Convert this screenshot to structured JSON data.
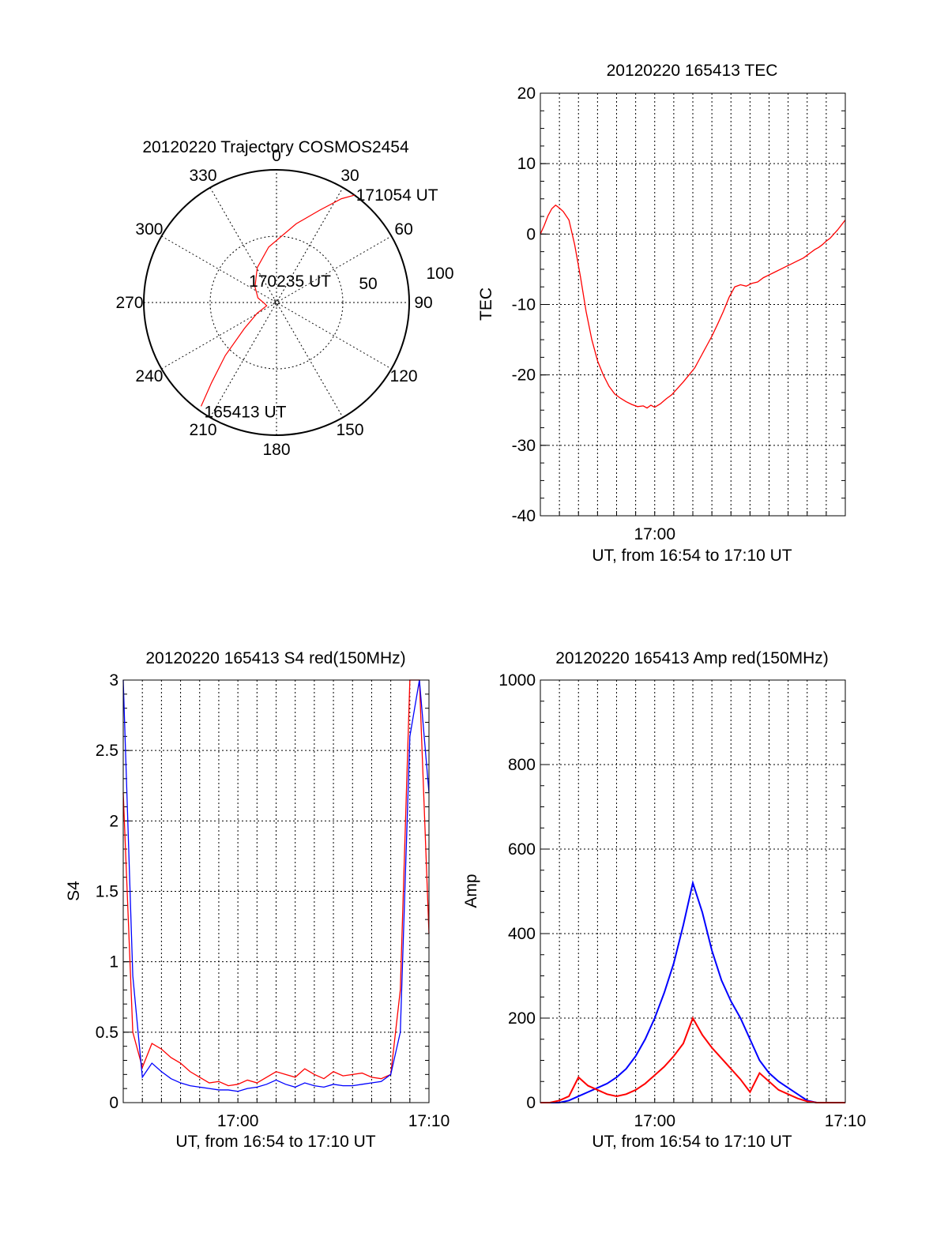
{
  "charts": {
    "polar": {
      "type": "polar",
      "title": "20120220 Trajectory COSMOS2454",
      "azimuth_labels": [
        "0",
        "30",
        "60",
        "90",
        "120",
        "150",
        "180",
        "210",
        "240",
        "270",
        "300",
        "330"
      ],
      "elevation_labels": [
        "50",
        "100"
      ],
      "trajectory": {
        "color": "#ff0000",
        "start_label": "165413 UT",
        "mid_label": "170235 UT",
        "end_label": "171054 UT",
        "points": [
          [
            216,
            3
          ],
          [
            219,
            20
          ],
          [
            224,
            40
          ],
          [
            231,
            62
          ],
          [
            241,
            75
          ],
          [
            252,
            83
          ],
          [
            264,
            82
          ],
          [
            284,
            77
          ],
          [
            306,
            72
          ],
          [
            331,
            63
          ],
          [
            352,
            52
          ],
          [
            14,
            35
          ],
          [
            25,
            21
          ],
          [
            32,
            7
          ],
          [
            36,
            0
          ]
        ]
      }
    },
    "tec": {
      "type": "line",
      "title": "20120220 165413 TEC",
      "xlabel": "UT, from 16:54 to 17:10 UT",
      "ylabel": "TEC",
      "xlim": [
        "16:54",
        "17:10"
      ],
      "ylim": [
        -40,
        20
      ],
      "yticks": [
        "20",
        "10",
        "0",
        "-10",
        "-20",
        "-30",
        "-40"
      ],
      "xtick_labels": [
        {
          "at": "17:00",
          "label": "17:00"
        }
      ],
      "series": [
        {
          "color": "#ff0000",
          "x": [
            0,
            0.2,
            0.4,
            0.6,
            0.8,
            1.0,
            1.2,
            1.5,
            1.8,
            2.1,
            2.4,
            2.7,
            3.0,
            3.3,
            3.6,
            3.9,
            4.2,
            4.5,
            4.8,
            5.1,
            5.4,
            5.6,
            5.8,
            6.0,
            6.3,
            6.6,
            6.9,
            7.2,
            7.5,
            7.8,
            8.1,
            8.4,
            8.7,
            9.0,
            9.3,
            9.6,
            9.9,
            10.2,
            10.5,
            10.8,
            11.1,
            11.4,
            11.7,
            12.0,
            12.3,
            12.6,
            12.9,
            13.2,
            13.5,
            13.8,
            14.0,
            14.2,
            14.4,
            14.6,
            14.8,
            15.0,
            15.2,
            15.4,
            15.6,
            15.8,
            16.0
          ],
          "y": [
            0,
            1.2,
            2.6,
            3.6,
            4.1,
            3.7,
            3.2,
            2.0,
            -1.5,
            -6.0,
            -11.0,
            -15.0,
            -18.0,
            -20.0,
            -21.6,
            -22.7,
            -23.3,
            -23.8,
            -24.2,
            -24.5,
            -24.4,
            -24.7,
            -24.3,
            -24.6,
            -24.1,
            -23.4,
            -22.8,
            -21.9,
            -21.0,
            -20.0,
            -19.0,
            -17.5,
            -16.0,
            -14.5,
            -12.8,
            -11.0,
            -9.0,
            -7.5,
            -7.2,
            -7.4,
            -7.0,
            -6.8,
            -6.2,
            -5.8,
            -5.4,
            -5.0,
            -4.6,
            -4.2,
            -3.8,
            -3.4,
            -3.0,
            -2.6,
            -2.2,
            -1.9,
            -1.5,
            -1.0,
            -0.6,
            0.0,
            0.6,
            1.3,
            2.0
          ]
        }
      ]
    },
    "s4": {
      "type": "line",
      "title": "20120220 165413 S4 red(150MHz)",
      "xlabel": "UT, from 16:54 to 17:10 UT",
      "ylabel": "S4",
      "xlim": [
        "16:54",
        "17:10"
      ],
      "ylim": [
        0,
        3
      ],
      "yticks": [
        "3",
        "2.5",
        "2",
        "1.5",
        "1",
        "0.5",
        "0"
      ],
      "xtick_labels": [
        {
          "at": "17:00",
          "label": "17:00"
        },
        {
          "at": "17:10",
          "label": "17:10"
        }
      ],
      "series": [
        {
          "color": "#ff0000",
          "x": [
            0,
            0.5,
            1,
            1.5,
            2,
            2.5,
            3,
            3.5,
            4,
            4.5,
            5,
            5.5,
            6,
            6.5,
            7,
            7.5,
            8,
            8.5,
            9,
            9.5,
            10,
            10.5,
            11,
            11.5,
            12,
            12.5,
            13,
            13.5,
            14,
            14.5,
            15,
            15.5,
            16
          ],
          "y": [
            2.2,
            0.5,
            0.25,
            0.42,
            0.38,
            0.32,
            0.28,
            0.22,
            0.18,
            0.14,
            0.15,
            0.12,
            0.13,
            0.16,
            0.14,
            0.18,
            0.22,
            0.2,
            0.18,
            0.24,
            0.2,
            0.17,
            0.22,
            0.19,
            0.2,
            0.21,
            0.18,
            0.17,
            0.2,
            0.8,
            3.0,
            3.0,
            1.2
          ]
        },
        {
          "color": "#0000ff",
          "x": [
            0,
            0.5,
            1,
            1.5,
            2,
            2.5,
            3,
            3.5,
            4,
            4.5,
            5,
            5.5,
            6,
            6.5,
            7,
            7.5,
            8,
            8.5,
            9,
            9.5,
            10,
            10.5,
            11,
            11.5,
            12,
            12.5,
            13,
            13.5,
            14,
            14.5,
            15,
            15.5,
            16
          ],
          "y": [
            3.0,
            0.9,
            0.18,
            0.28,
            0.22,
            0.17,
            0.14,
            0.12,
            0.11,
            0.1,
            0.09,
            0.09,
            0.08,
            0.1,
            0.11,
            0.13,
            0.16,
            0.13,
            0.11,
            0.14,
            0.12,
            0.11,
            0.13,
            0.12,
            0.12,
            0.13,
            0.14,
            0.15,
            0.2,
            0.5,
            2.6,
            3.0,
            2.2
          ]
        }
      ]
    },
    "amp": {
      "type": "line",
      "title": "20120220 165413 Amp red(150MHz)",
      "xlabel": "UT, from 16:54 to 17:10 UT",
      "ylabel": "Amp",
      "xlim": [
        "16:54",
        "17:10"
      ],
      "ylim": [
        0,
        1000
      ],
      "yticks": [
        "1000",
        "800",
        "600",
        "400",
        "200",
        "0"
      ],
      "xtick_labels": [
        {
          "at": "17:00",
          "label": "17:00"
        },
        {
          "at": "17:10",
          "label": "17:10"
        }
      ],
      "series": [
        {
          "color": "#0000ff",
          "x": [
            0,
            0.5,
            1,
            1.5,
            2,
            2.5,
            3,
            3.5,
            4,
            4.5,
            5,
            5.5,
            6,
            6.5,
            7,
            7.5,
            8,
            8.5,
            9,
            9.5,
            10,
            10.5,
            11,
            11.5,
            12,
            12.5,
            13,
            13.5,
            14,
            14.5,
            15,
            15.5,
            16
          ],
          "y": [
            0,
            0,
            0,
            5,
            15,
            25,
            35,
            45,
            60,
            80,
            110,
            150,
            200,
            260,
            330,
            420,
            520,
            450,
            360,
            290,
            240,
            200,
            150,
            100,
            70,
            50,
            35,
            20,
            5,
            0,
            0,
            0,
            0
          ]
        },
        {
          "color": "#ff0000",
          "x": [
            0,
            0.5,
            1,
            1.5,
            2,
            2.5,
            3,
            3.5,
            4,
            4.5,
            5,
            5.5,
            6,
            6.5,
            7,
            7.5,
            8,
            8.5,
            9,
            9.5,
            10,
            10.5,
            11,
            11.5,
            12,
            12.5,
            13,
            13.5,
            14,
            14.5,
            15,
            15.5,
            16
          ],
          "y": [
            0,
            0,
            5,
            15,
            60,
            40,
            30,
            20,
            15,
            20,
            30,
            45,
            65,
            85,
            110,
            140,
            200,
            160,
            130,
            105,
            80,
            55,
            25,
            70,
            50,
            30,
            20,
            10,
            3,
            0,
            0,
            0,
            0
          ]
        }
      ]
    }
  }
}
